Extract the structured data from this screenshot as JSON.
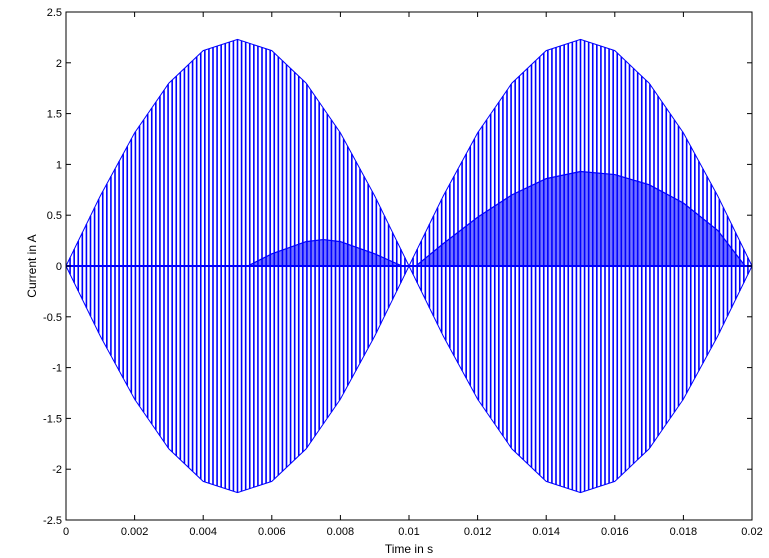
{
  "chart_data": {
    "type": "line",
    "xlabel": "Time in s",
    "ylabel": "Current in A",
    "xlim": [
      0,
      0.02
    ],
    "ylim": [
      -2.5,
      2.5
    ],
    "grid": false,
    "x_ticks": [
      "0",
      "0.002",
      "0.004",
      "0.006",
      "0.008",
      "0.01",
      "0.012",
      "0.014",
      "0.016",
      "0.018",
      "0.02"
    ],
    "y_ticks": [
      "2.5",
      "2",
      "1.5",
      "1",
      "0.5",
      "0",
      "-0.5",
      "-1",
      "-1.5",
      "-2",
      "-2.5"
    ],
    "line_color": "#0000ff",
    "series": [
      {
        "description_type": "pwm_modulated_sinusoid",
        "x_points": [
          0,
          0.001,
          0.002,
          0.003,
          0.004,
          0.005,
          0.006,
          0.007,
          0.008,
          0.009,
          0.01,
          0.011,
          0.012,
          0.013,
          0.014,
          0.015,
          0.016,
          0.017,
          0.018,
          0.019,
          0.02
        ],
        "upper_envelope": [
          0.0,
          0.69,
          1.31,
          1.8,
          2.12,
          2.23,
          2.12,
          1.8,
          1.31,
          0.69,
          0.0,
          0.69,
          1.31,
          1.8,
          2.12,
          2.23,
          2.12,
          1.8,
          1.31,
          0.69,
          0.0
        ],
        "lower_envelope": [
          0.0,
          -0.69,
          -1.31,
          -1.8,
          -2.12,
          -2.23,
          -2.12,
          -1.8,
          -1.31,
          -0.69,
          0.0,
          -0.69,
          -1.31,
          -1.8,
          -2.12,
          -2.23,
          -2.12,
          -1.8,
          -1.31,
          -0.69,
          0.0
        ],
        "pulses": 168
      },
      {
        "description_type": "average_hump_1",
        "x_points": [
          0.0053,
          0.006,
          0.007,
          0.0075,
          0.008,
          0.009,
          0.0098
        ],
        "values": [
          0.0,
          0.12,
          0.24,
          0.26,
          0.24,
          0.12,
          0.0
        ]
      },
      {
        "description_type": "average_hump_2",
        "x_points": [
          0.0102,
          0.011,
          0.012,
          0.013,
          0.014,
          0.015,
          0.016,
          0.017,
          0.018,
          0.019,
          0.0198
        ],
        "values": [
          0.0,
          0.22,
          0.48,
          0.7,
          0.86,
          0.93,
          0.9,
          0.8,
          0.62,
          0.35,
          0.0
        ]
      }
    ]
  }
}
